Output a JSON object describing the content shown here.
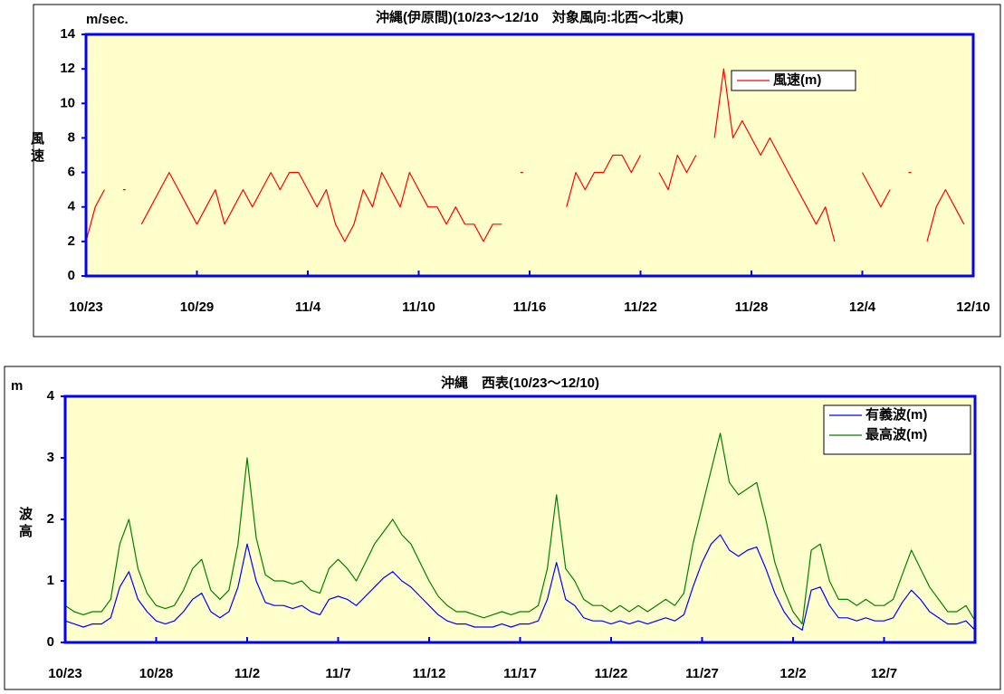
{
  "chart_data": [
    {
      "type": "line",
      "title": "沖縄(伊原間)(10/23～12/10　対象風向:北西～北東)",
      "unit_label": "m/sec.",
      "y_label": "風速",
      "xlim": [
        0,
        48
      ],
      "xticks": [
        {
          "value": 0,
          "label": "10/23"
        },
        {
          "value": 6,
          "label": "10/29"
        },
        {
          "value": 12,
          "label": "11/4"
        },
        {
          "value": 18,
          "label": "11/10"
        },
        {
          "value": 24,
          "label": "11/16"
        },
        {
          "value": 30,
          "label": "11/22"
        },
        {
          "value": 36,
          "label": "11/28"
        },
        {
          "value": 42,
          "label": "12/4"
        },
        {
          "value": 48,
          "label": "12/10"
        }
      ],
      "ylim": [
        0,
        14
      ],
      "yticks": [
        0,
        2,
        4,
        6,
        8,
        10,
        12,
        14
      ],
      "legend": "upper right",
      "background": "#ffffcc",
      "axis_color": "#0000ff",
      "x": [
        0,
        0.5,
        1,
        1.5,
        2,
        2.5,
        3,
        3.5,
        4,
        4.5,
        5,
        5.5,
        6,
        6.5,
        7,
        7.5,
        8,
        8.5,
        9,
        9.5,
        10,
        10.5,
        11,
        11.5,
        12,
        12.5,
        13,
        13.5,
        14,
        14.5,
        15,
        15.5,
        16,
        16.5,
        17,
        17.5,
        18,
        18.5,
        19,
        19.5,
        20,
        20.5,
        21,
        21.5,
        22,
        22.5,
        23,
        23.5,
        24,
        24.5,
        25,
        25.5,
        26,
        26.5,
        27,
        27.5,
        28,
        28.5,
        29,
        29.5,
        30,
        30.5,
        31,
        31.5,
        32,
        32.5,
        33,
        33.5,
        34,
        34.5,
        35,
        35.5,
        36,
        36.5,
        37,
        37.5,
        38,
        38.5,
        39,
        39.5,
        40,
        40.5,
        41,
        41.5,
        42,
        42.5,
        43,
        43.5,
        44,
        44.5,
        45,
        45.5,
        46,
        46.5,
        47,
        47.5
      ],
      "series": [
        {
          "name": "風速(m)",
          "color": "#ff0000",
          "values": [
            2,
            4,
            5,
            null,
            5,
            null,
            3,
            4,
            5,
            6,
            5,
            4,
            3,
            4,
            5,
            3,
            4,
            5,
            4,
            5,
            6,
            5,
            6,
            6,
            5,
            4,
            5,
            3,
            2,
            3,
            5,
            4,
            6,
            5,
            4,
            6,
            5,
            4,
            4,
            3,
            4,
            3,
            3,
            2,
            3,
            3,
            null,
            6,
            null,
            null,
            null,
            null,
            4,
            6,
            5,
            6,
            6,
            7,
            7,
            6,
            7,
            null,
            6,
            5,
            7,
            6,
            7,
            null,
            8,
            12,
            8,
            9,
            8,
            7,
            8,
            7,
            6,
            5,
            4,
            3,
            4,
            2,
            null,
            null,
            6,
            5,
            4,
            5,
            null,
            6,
            null,
            2,
            4,
            5,
            4,
            3
          ]
        }
      ]
    },
    {
      "type": "line",
      "title": "沖縄　西表(10/23～12/10)",
      "unit_label": "m",
      "y_label": "波高",
      "xlim": [
        0,
        50
      ],
      "xticks": [
        {
          "value": 0,
          "label": "10/23"
        },
        {
          "value": 5,
          "label": "10/28"
        },
        {
          "value": 10,
          "label": "11/2"
        },
        {
          "value": 15,
          "label": "11/7"
        },
        {
          "value": 20,
          "label": "11/12"
        },
        {
          "value": 25,
          "label": "11/17"
        },
        {
          "value": 30,
          "label": "11/22"
        },
        {
          "value": 35,
          "label": "11/27"
        },
        {
          "value": 40,
          "label": "12/2"
        },
        {
          "value": 45,
          "label": "12/7"
        }
      ],
      "ylim": [
        0,
        4
      ],
      "yticks": [
        0,
        1,
        2,
        3,
        4
      ],
      "legend": "upper right",
      "background": "#ffffcc",
      "axis_color": "#0000ff",
      "x": [
        0,
        0.5,
        1,
        1.5,
        2,
        2.5,
        3,
        3.5,
        4,
        4.5,
        5,
        5.5,
        6,
        6.5,
        7,
        7.5,
        8,
        8.5,
        9,
        9.5,
        10,
        10.5,
        11,
        11.5,
        12,
        12.5,
        13,
        13.5,
        14,
        14.5,
        15,
        15.5,
        16,
        16.5,
        17,
        17.5,
        18,
        18.5,
        19,
        19.5,
        20,
        20.5,
        21,
        21.5,
        22,
        22.5,
        23,
        23.5,
        24,
        24.5,
        25,
        25.5,
        26,
        26.5,
        27,
        27.5,
        28,
        28.5,
        29,
        29.5,
        30,
        30.5,
        31,
        31.5,
        32,
        32.5,
        33,
        33.5,
        34,
        34.5,
        35,
        35.5,
        36,
        36.5,
        37,
        37.5,
        38,
        38.5,
        39,
        39.5,
        40,
        40.5,
        41,
        41.5,
        42,
        42.5,
        43,
        43.5,
        44,
        44.5,
        45,
        45.5,
        46,
        46.5,
        47,
        47.5,
        48,
        48.5,
        49,
        49.5,
        50
      ],
      "series": [
        {
          "name": "有義波(m)",
          "color": "#0000ff",
          "values": [
            0.35,
            0.3,
            0.25,
            0.3,
            0.3,
            0.4,
            0.9,
            1.15,
            0.7,
            0.5,
            0.35,
            0.3,
            0.35,
            0.5,
            0.7,
            0.8,
            0.5,
            0.4,
            0.5,
            0.9,
            1.6,
            1.0,
            0.65,
            0.6,
            0.6,
            0.55,
            0.6,
            0.5,
            0.45,
            0.7,
            0.75,
            0.7,
            0.6,
            0.75,
            0.9,
            1.05,
            1.15,
            1.0,
            0.9,
            0.75,
            0.6,
            0.45,
            0.35,
            0.3,
            0.3,
            0.25,
            0.25,
            0.25,
            0.3,
            0.25,
            0.3,
            0.3,
            0.35,
            0.7,
            1.3,
            0.7,
            0.6,
            0.4,
            0.35,
            0.35,
            0.3,
            0.35,
            0.3,
            0.35,
            0.3,
            0.35,
            0.4,
            0.35,
            0.45,
            0.9,
            1.3,
            1.6,
            1.75,
            1.5,
            1.4,
            1.5,
            1.55,
            1.2,
            0.8,
            0.5,
            0.3,
            0.2,
            0.85,
            0.9,
            0.6,
            0.4,
            0.4,
            0.35,
            0.4,
            0.35,
            0.35,
            0.4,
            0.65,
            0.85,
            0.7,
            0.5,
            0.4,
            0.3,
            0.3,
            0.35,
            0.2
          ]
        },
        {
          "name": "最高波(m)",
          "color": "#008000",
          "values": [
            0.6,
            0.5,
            0.45,
            0.5,
            0.5,
            0.7,
            1.6,
            2.0,
            1.2,
            0.8,
            0.6,
            0.55,
            0.6,
            0.85,
            1.2,
            1.35,
            0.85,
            0.7,
            0.85,
            1.6,
            3.0,
            1.7,
            1.1,
            1.0,
            1.0,
            0.95,
            1.0,
            0.85,
            0.8,
            1.2,
            1.35,
            1.2,
            1.0,
            1.3,
            1.6,
            1.8,
            2.0,
            1.75,
            1.6,
            1.3,
            1.0,
            0.75,
            0.6,
            0.5,
            0.5,
            0.45,
            0.4,
            0.45,
            0.5,
            0.45,
            0.5,
            0.5,
            0.6,
            1.2,
            2.4,
            1.2,
            1.0,
            0.7,
            0.6,
            0.6,
            0.5,
            0.6,
            0.5,
            0.6,
            0.5,
            0.6,
            0.7,
            0.6,
            0.8,
            1.6,
            2.2,
            2.8,
            3.4,
            2.6,
            2.4,
            2.5,
            2.6,
            2.0,
            1.3,
            0.85,
            0.5,
            0.3,
            1.5,
            1.6,
            1.0,
            0.7,
            0.7,
            0.6,
            0.7,
            0.6,
            0.6,
            0.7,
            1.1,
            1.5,
            1.2,
            0.9,
            0.7,
            0.5,
            0.5,
            0.6,
            0.35
          ]
        }
      ]
    }
  ]
}
